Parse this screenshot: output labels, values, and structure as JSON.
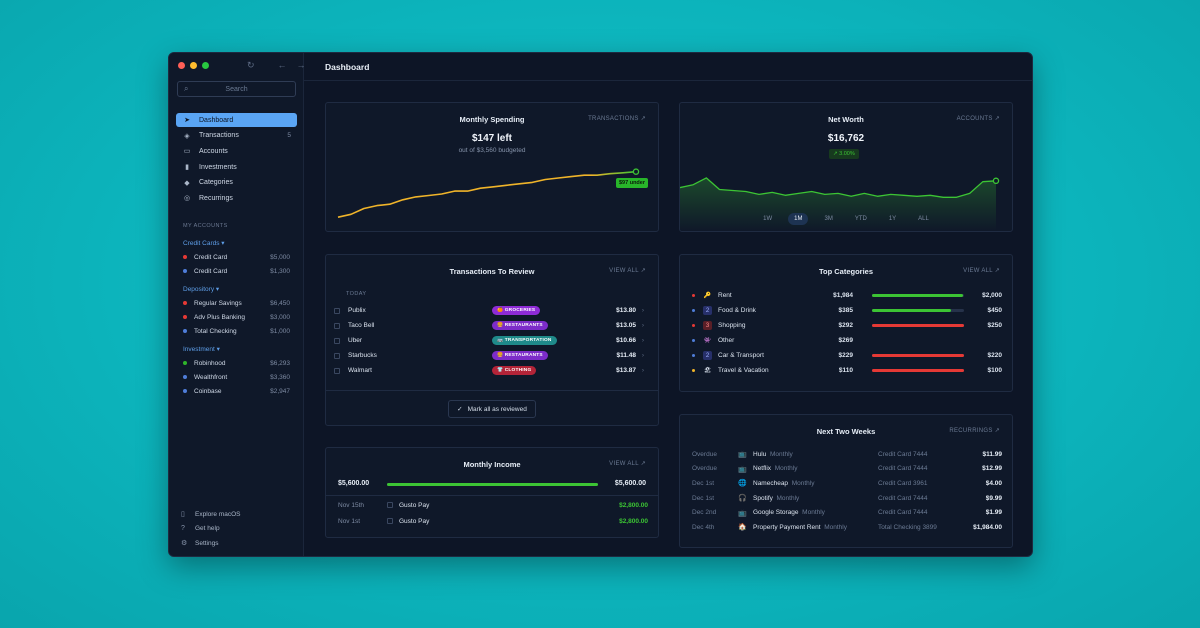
{
  "window": {
    "title": "Dashboard"
  },
  "sidebar": {
    "search_placeholder": "Search",
    "items": [
      {
        "label": "Dashboard",
        "icon": "paper-plane-icon",
        "active": true
      },
      {
        "label": "Transactions",
        "icon": "stack-icon",
        "count": "5"
      },
      {
        "label": "Accounts",
        "icon": "card-icon"
      },
      {
        "label": "Investments",
        "icon": "bar-chart-icon"
      },
      {
        "label": "Categories",
        "icon": "tag-icon"
      },
      {
        "label": "Recurrings",
        "icon": "recurring-icon"
      }
    ],
    "my_accounts_label": "MY ACCOUNTS",
    "groups": [
      {
        "label": "Credit Cards",
        "accounts": [
          {
            "name": "Credit Card",
            "value": "$5,000",
            "color": "#e53935"
          },
          {
            "name": "Credit Card",
            "value": "$1,300",
            "color": "#4f7dd8"
          }
        ]
      },
      {
        "label": "Depository",
        "accounts": [
          {
            "name": "Regular Savings",
            "value": "$6,450",
            "color": "#e53935"
          },
          {
            "name": "Adv Plus Banking",
            "value": "$3,000",
            "color": "#e53935"
          },
          {
            "name": "Total Checking",
            "value": "$1,000",
            "color": "#4f7dd8"
          }
        ]
      },
      {
        "label": "Investment",
        "accounts": [
          {
            "name": "Robinhood",
            "value": "$6,293",
            "color": "#2fb52a"
          },
          {
            "name": "Wealthfront",
            "value": "$3,360",
            "color": "#4f7dd8"
          },
          {
            "name": "Coinbase",
            "value": "$2,947",
            "color": "#4f7dd8"
          }
        ]
      }
    ],
    "footer": [
      {
        "label": "Explore macOS",
        "icon": "device-icon"
      },
      {
        "label": "Get help",
        "icon": "help-icon"
      },
      {
        "label": "Settings",
        "icon": "gear-icon"
      }
    ]
  },
  "spending": {
    "title": "Monthly Spending",
    "link": "TRANSACTIONS ↗",
    "amount": "$147 left",
    "sub": "out of $3,560 budgeted",
    "badge": "$97 under",
    "line_color": "#f0b429"
  },
  "networth": {
    "title": "Net Worth",
    "link": "ACCOUNTS ↗",
    "amount": "$16,762",
    "change": "↗ 3.00%",
    "periods": [
      "1W",
      "1M",
      "3M",
      "YTD",
      "1Y",
      "ALL"
    ],
    "selected_period": "1M",
    "line_color": "#3cc434"
  },
  "review": {
    "title": "Transactions To Review",
    "link": "VIEW ALL ↗",
    "section": "TODAY",
    "mark_label": "Mark all as reviewed",
    "rows": [
      {
        "name": "Publix",
        "tag": "GROCERIES",
        "tag_color": "#8e2bd6",
        "tag_icon": "🍊",
        "amount": "$13.80"
      },
      {
        "name": "Taco Bell",
        "tag": "RESTAURANTS",
        "tag_color": "#7d2cc9",
        "tag_icon": "🍔",
        "amount": "$13.05"
      },
      {
        "name": "Uber",
        "tag": "TRANSPORTATION",
        "tag_color": "#1f8a8a",
        "tag_icon": "🚌",
        "amount": "$10.66"
      },
      {
        "name": "Starbucks",
        "tag": "RESTAURANTS",
        "tag_color": "#7d2cc9",
        "tag_icon": "🍔",
        "amount": "$11.48"
      },
      {
        "name": "Walmart",
        "tag": "CLOTHING",
        "tag_color": "#b32438",
        "tag_icon": "👕",
        "amount": "$13.87"
      }
    ]
  },
  "categories": {
    "title": "Top Categories",
    "link": "VIEW ALL ↗",
    "rows": [
      {
        "name": "Rent",
        "icon": "🔑",
        "dot": "#e53935",
        "spent": "$1,984",
        "budget": "$2,000",
        "progress": 0.99,
        "bar": "#3cc434"
      },
      {
        "name": "Food & Drink",
        "icon": "2",
        "dot": "#4f7dd8",
        "spent": "$385",
        "budget": "$450",
        "progress": 0.86,
        "bar": "#3cc434"
      },
      {
        "name": "Shopping",
        "icon": "3",
        "dot": "#e53935",
        "spent": "$292",
        "budget": "$250",
        "progress": 1.0,
        "bar": "#e53935"
      },
      {
        "name": "Other",
        "icon": "👾",
        "dot": "#4f7dd8",
        "spent": "$269",
        "budget": "",
        "progress": 0,
        "bar": "#3cc434"
      },
      {
        "name": "Car & Transport",
        "icon": "2",
        "dot": "#4f7dd8",
        "spent": "$229",
        "budget": "$220",
        "progress": 1.0,
        "bar": "#e53935"
      },
      {
        "name": "Travel & Vacation",
        "icon": "🏖",
        "dot": "#f0b429",
        "spent": "$110",
        "budget": "$100",
        "progress": 1.0,
        "bar": "#e53935"
      }
    ]
  },
  "income": {
    "title": "Monthly Income",
    "link": "VIEW ALL ↗",
    "amount_left": "$5,600.00",
    "amount_right": "$5,600.00",
    "progress": 1.0,
    "rows": [
      {
        "date": "Nov 15th",
        "name": "Gusto Pay",
        "value": "$2,800.00"
      },
      {
        "date": "Nov 1st",
        "name": "Gusto Pay",
        "value": "$2,800.00"
      }
    ]
  },
  "upcoming": {
    "title": "Next Two Weeks",
    "link": "RECURRINGS ↗",
    "rows": [
      {
        "date": "Overdue",
        "icon": "📺",
        "name": "Hulu",
        "freq": "Monthly",
        "account": "Credit Card 7444",
        "amount": "$11.99"
      },
      {
        "date": "Overdue",
        "icon": "📺",
        "name": "Netflix",
        "freq": "Monthly",
        "account": "Credit Card 7444",
        "amount": "$12.99"
      },
      {
        "date": "Dec 1st",
        "icon": "🌐",
        "name": "Namecheap",
        "freq": "Monthly",
        "account": "Credit Card 3961",
        "amount": "$4.00"
      },
      {
        "date": "Dec 1st",
        "icon": "🎧",
        "name": "Spotify",
        "freq": "Monthly",
        "account": "Credit Card 7444",
        "amount": "$9.99"
      },
      {
        "date": "Dec 2nd",
        "icon": "📺",
        "name": "Google Storage",
        "freq": "Monthly",
        "account": "Credit Card 7444",
        "amount": "$1.99"
      },
      {
        "date": "Dec 4th",
        "icon": "🏠",
        "name": "Property Payment Rent",
        "freq": "Monthly",
        "account": "Total Checking 3899",
        "amount": "$1,984.00"
      }
    ]
  },
  "chart_data": [
    {
      "type": "line",
      "series": [
        {
          "values": [
            2,
            3,
            5,
            6,
            6.5,
            8,
            9,
            9.5,
            10,
            11,
            11,
            12,
            12.5,
            13,
            13.5,
            14,
            15,
            15.5,
            16,
            16.5,
            16.5,
            17,
            17.3,
            17.7
          ]
        }
      ]
    },
    {
      "type": "area",
      "series": [
        {
          "values": [
            15,
            15.3,
            16,
            14.8,
            14.7,
            14.6,
            14.3,
            14.5,
            14.2,
            14.4,
            14.6,
            14.3,
            14.4,
            14.1,
            14.4,
            14.1,
            14.3,
            14.2,
            14.1,
            14.2,
            14.0,
            14.0,
            14.4,
            15.6,
            15.7
          ]
        }
      ]
    }
  ]
}
